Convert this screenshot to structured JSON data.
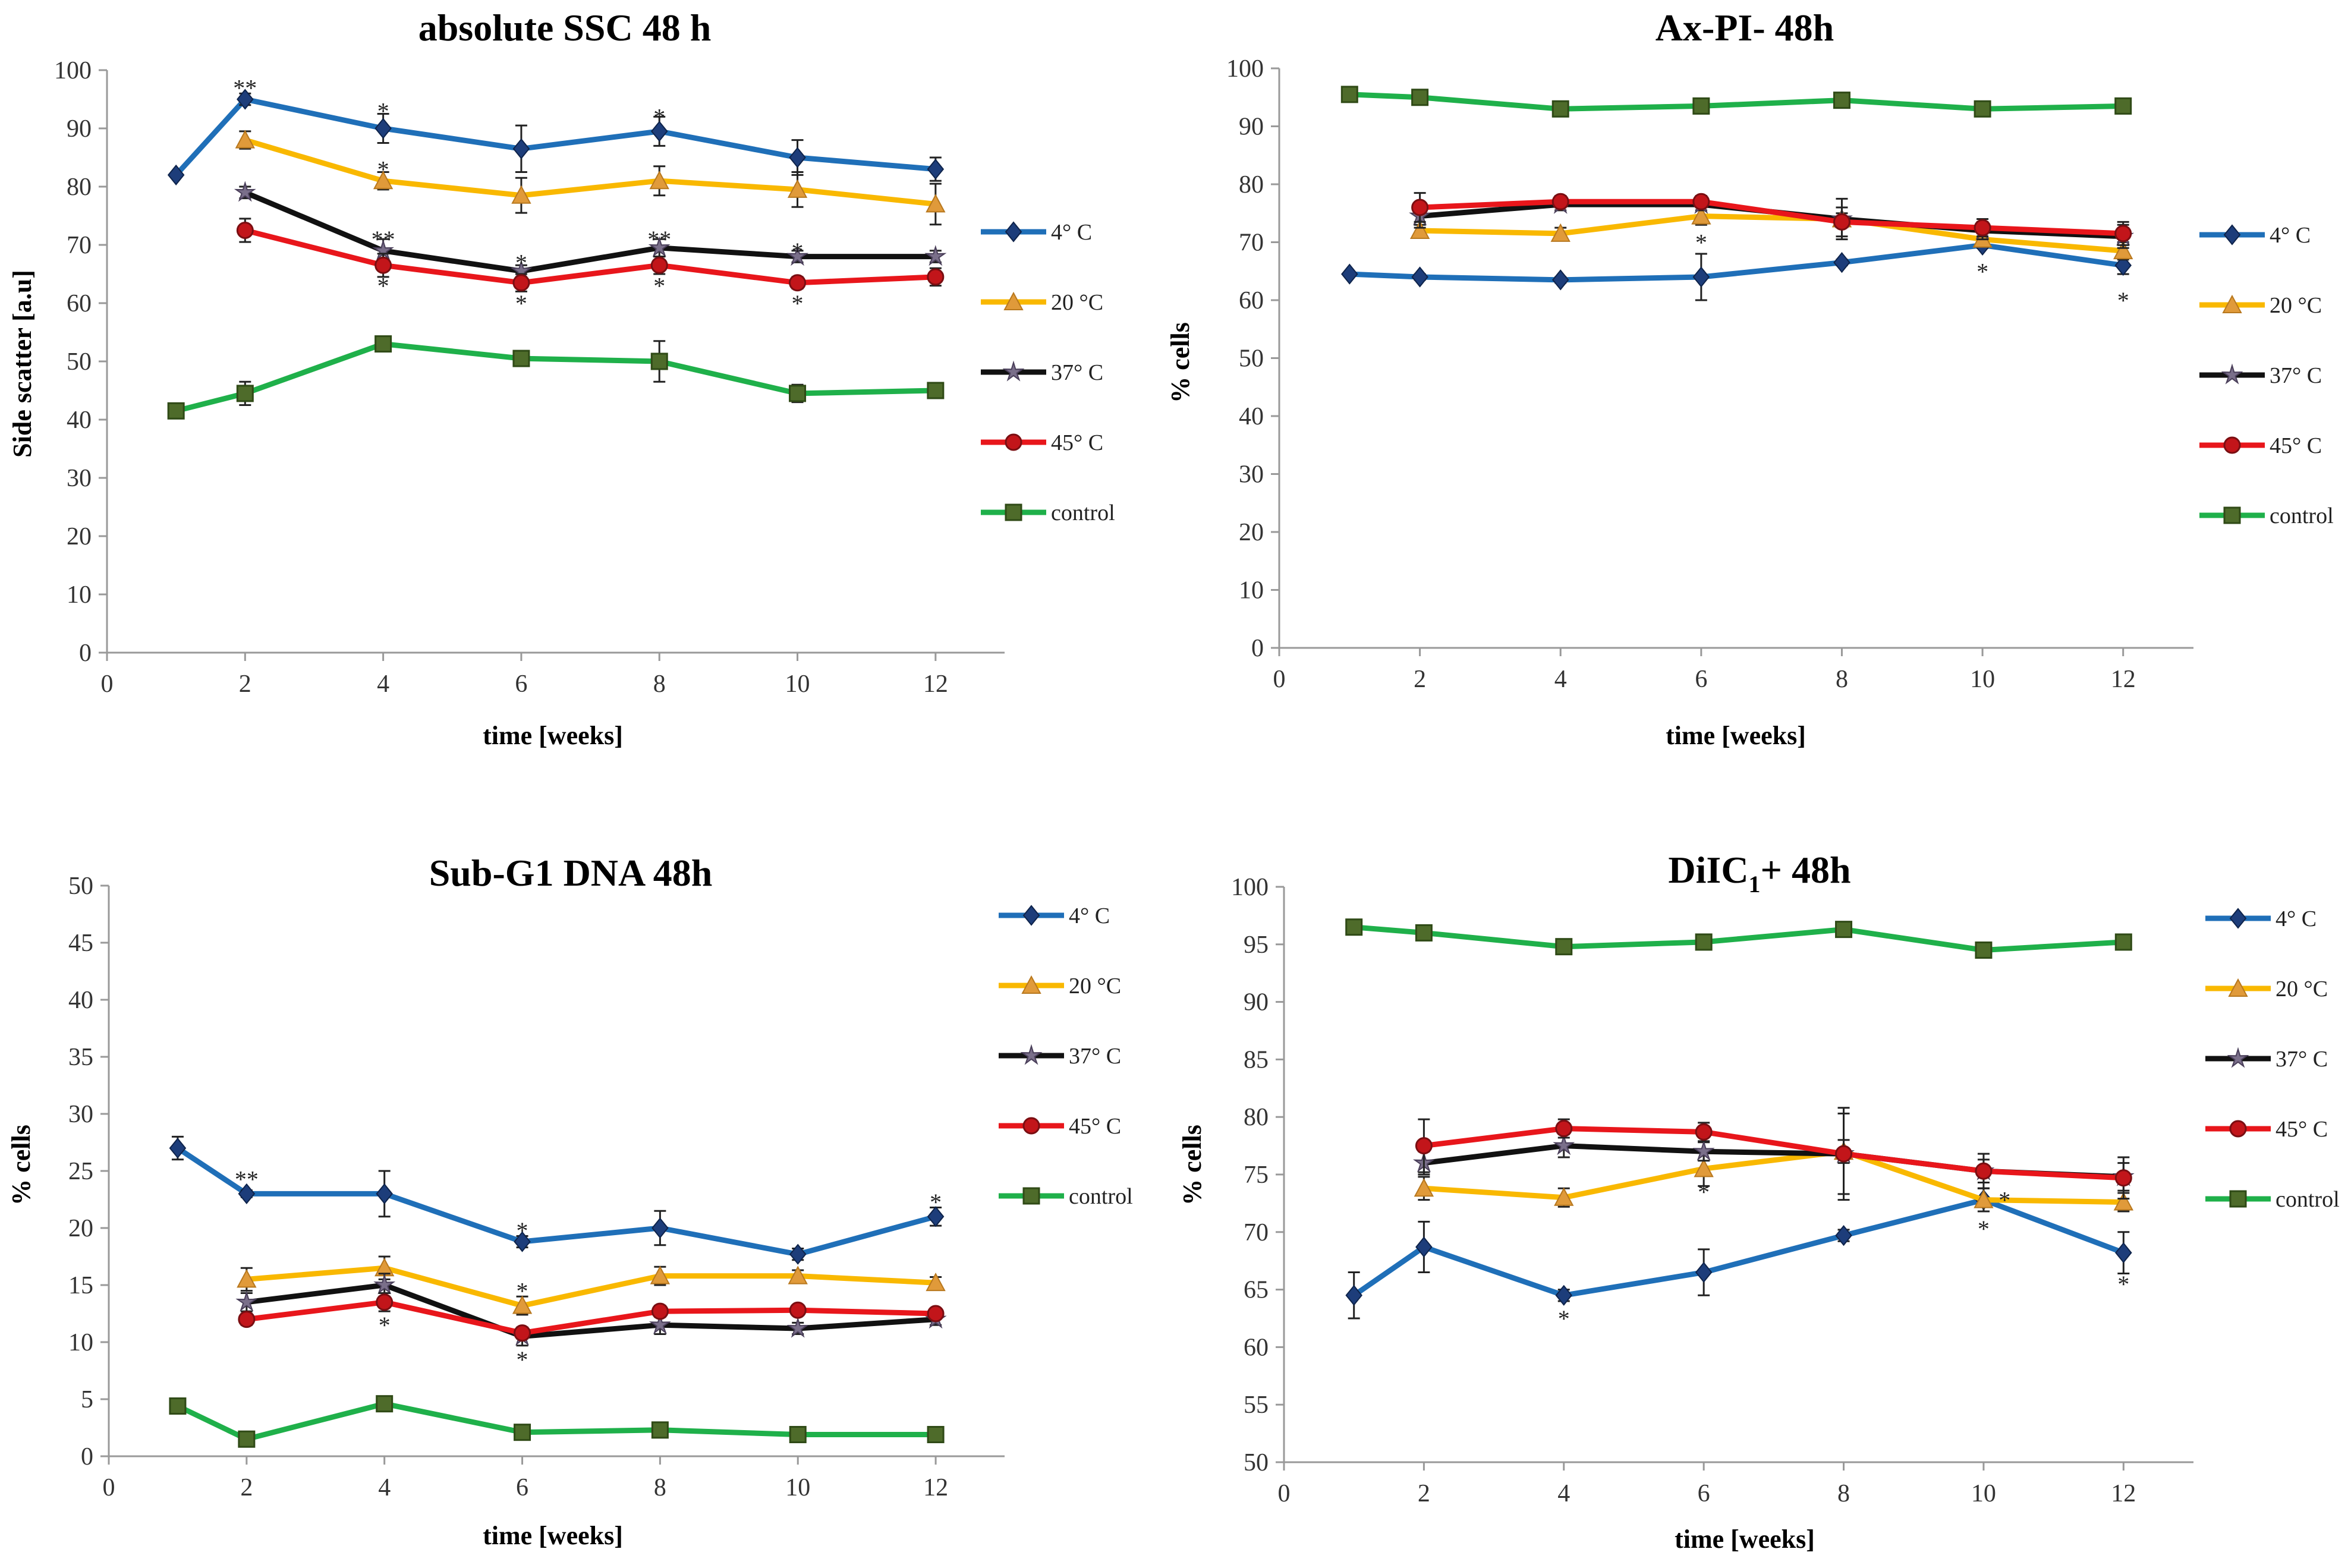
{
  "chart_data": [
    {
      "type": "line",
      "title": "absolute SSC 48 h",
      "xlabel": "time  [weeks]",
      "ylabel": "Side scatter [a.u]",
      "xlim": [
        0,
        13
      ],
      "ylim": [
        0,
        100
      ],
      "xticks": [
        0,
        2,
        4,
        6,
        8,
        10,
        12
      ],
      "yticks": [
        0,
        10,
        20,
        30,
        40,
        50,
        60,
        70,
        80,
        90,
        100
      ],
      "x": [
        1,
        2,
        4,
        6,
        8,
        10,
        12
      ],
      "series": [
        {
          "name": "4° C",
          "color": "#1f6fb8",
          "marker": "diamond",
          "values": [
            82,
            95,
            90,
            86.5,
            89.5,
            85,
            83
          ],
          "errors": [
            0,
            1,
            2.5,
            4,
            2.5,
            3,
            2
          ]
        },
        {
          "name": "20 °C",
          "color": "#f9b800",
          "marker": "triangle",
          "values": [
            null,
            88,
            81,
            78.5,
            81,
            79.5,
            77
          ],
          "errors": [
            0,
            1.5,
            1.5,
            3,
            2.5,
            3,
            3.5
          ]
        },
        {
          "name": "37° C",
          "color": "#111111",
          "marker": "star",
          "values": [
            null,
            79,
            69,
            65.5,
            69.5,
            68,
            68
          ],
          "errors": [
            0,
            1,
            2,
            1,
            1.5,
            1,
            1
          ]
        },
        {
          "name": "45° C",
          "color": "#e8161b",
          "marker": "circle",
          "values": [
            null,
            72.5,
            66.5,
            63.5,
            66.5,
            63.5,
            64.5
          ],
          "errors": [
            0,
            2,
            2,
            1.5,
            1.5,
            1,
            1.5
          ]
        },
        {
          "name": "control",
          "color": "#1fb04a",
          "marker": "square",
          "values": [
            41.5,
            44.5,
            53,
            50.5,
            50,
            44.5,
            45
          ],
          "errors": [
            0,
            2,
            1,
            1,
            3.5,
            1.5,
            1
          ]
        }
      ],
      "annotations": [
        {
          "x": 2,
          "y": 97,
          "text": "**"
        },
        {
          "x": 4,
          "y": 93,
          "text": "*"
        },
        {
          "x": 4,
          "y": 83,
          "text": "*"
        },
        {
          "x": 4,
          "y": 71,
          "text": "**"
        },
        {
          "x": 4,
          "y": 63,
          "text": "*"
        },
        {
          "x": 6,
          "y": 67,
          "text": "*"
        },
        {
          "x": 6,
          "y": 60,
          "text": "*"
        },
        {
          "x": 8,
          "y": 92,
          "text": "*"
        },
        {
          "x": 8,
          "y": 71,
          "text": "**"
        },
        {
          "x": 8,
          "y": 63,
          "text": "*"
        },
        {
          "x": 10,
          "y": 69,
          "text": "*"
        },
        {
          "x": 10,
          "y": 60,
          "text": "*"
        }
      ]
    },
    {
      "type": "line",
      "title": "Ax-PI-  48h",
      "xlabel": "time  [weeks]",
      "ylabel": "% cells",
      "xlim": [
        0,
        13
      ],
      "ylim": [
        0,
        100
      ],
      "xticks": [
        0,
        2,
        4,
        6,
        8,
        10,
        12
      ],
      "yticks": [
        0,
        10,
        20,
        30,
        40,
        50,
        60,
        70,
        80,
        90,
        100
      ],
      "x": [
        1,
        2,
        4,
        6,
        8,
        10,
        12
      ],
      "series": [
        {
          "name": "4° C",
          "color": "#1f6fb8",
          "marker": "diamond",
          "values": [
            64.5,
            64,
            63.5,
            64,
            66.5,
            69.5,
            66
          ],
          "errors": [
            0,
            0.5,
            0.5,
            4,
            0.5,
            0.5,
            1.5
          ]
        },
        {
          "name": "20 °C",
          "color": "#f9b800",
          "marker": "triangle",
          "values": [
            null,
            72,
            71.5,
            74.5,
            74,
            70.5,
            68.5
          ],
          "errors": [
            0,
            1,
            1,
            1.5,
            1,
            1,
            1.5
          ]
        },
        {
          "name": "37° C",
          "color": "#111111",
          "marker": "star",
          "values": [
            null,
            74.5,
            76.5,
            76.5,
            74,
            72,
            71
          ],
          "errors": [
            0,
            2,
            1,
            1,
            3.5,
            1.5,
            2
          ]
        },
        {
          "name": "45° C",
          "color": "#e8161b",
          "marker": "circle",
          "values": [
            null,
            76,
            77,
            77,
            73.5,
            72.5,
            71.5
          ],
          "errors": [
            0,
            2.5,
            1,
            1,
            2.5,
            1.5,
            2
          ]
        },
        {
          "name": "control",
          "color": "#1fb04a",
          "marker": "square",
          "values": [
            95.5,
            95,
            93,
            93.5,
            94.5,
            93,
            93.5
          ],
          "errors": [
            0,
            0.5,
            0.5,
            0.5,
            0.5,
            0.5,
            0.5
          ]
        }
      ],
      "annotations": [
        {
          "x": 6,
          "y": 70,
          "text": "*"
        },
        {
          "x": 10,
          "y": 65,
          "text": "*"
        },
        {
          "x": 12,
          "y": 60,
          "text": "*"
        }
      ]
    },
    {
      "type": "line",
      "title": "Sub-G1 DNA 48h",
      "xlabel": "time  [weeks]",
      "ylabel": "% cells",
      "xlim": [
        0,
        13
      ],
      "ylim": [
        0,
        50
      ],
      "xticks": [
        0,
        2,
        4,
        6,
        8,
        10,
        12
      ],
      "yticks": [
        0,
        5,
        10,
        15,
        20,
        25,
        30,
        35,
        40,
        45,
        50
      ],
      "x": [
        1,
        2,
        4,
        6,
        8,
        10,
        12
      ],
      "series": [
        {
          "name": "4° C",
          "color": "#1f6fb8",
          "marker": "diamond",
          "values": [
            27,
            23,
            23,
            18.8,
            20,
            17.7,
            21
          ],
          "errors": [
            1,
            0.3,
            2,
            0.5,
            1.5,
            0.5,
            0.8
          ]
        },
        {
          "name": "20 °C",
          "color": "#f9b800",
          "marker": "triangle",
          "values": [
            null,
            15.5,
            16.5,
            13.2,
            15.8,
            15.8,
            15.2
          ],
          "errors": [
            0,
            1,
            1,
            0.8,
            0.8,
            0.5,
            0.5
          ]
        },
        {
          "name": "37° C",
          "color": "#111111",
          "marker": "star",
          "values": [
            null,
            13.5,
            15,
            10.5,
            11.5,
            11.2,
            12
          ],
          "errors": [
            0,
            0.8,
            1,
            0.8,
            0.8,
            0.5,
            0.5
          ]
        },
        {
          "name": "45° C",
          "color": "#e8161b",
          "marker": "circle",
          "values": [
            null,
            12,
            13.5,
            10.8,
            12.7,
            12.8,
            12.5
          ],
          "errors": [
            0,
            0.5,
            0.8,
            0.5,
            0.5,
            0.3,
            0.3
          ]
        },
        {
          "name": "control",
          "color": "#1fb04a",
          "marker": "square",
          "values": [
            4.4,
            1.5,
            4.6,
            2.1,
            2.3,
            1.9,
            1.9
          ],
          "errors": [
            0,
            0.3,
            0.3,
            0.3,
            0.3,
            0.3,
            0.3
          ]
        }
      ],
      "annotations": [
        {
          "x": 2,
          "y": 24.3,
          "text": "**"
        },
        {
          "x": 4,
          "y": 11.5,
          "text": "*"
        },
        {
          "x": 6,
          "y": 19.8,
          "text": "*"
        },
        {
          "x": 6,
          "y": 14.5,
          "text": "*"
        },
        {
          "x": 6,
          "y": 8.5,
          "text": "*"
        },
        {
          "x": 12,
          "y": 22.3,
          "text": "*"
        }
      ]
    },
    {
      "type": "line",
      "title": "DiIC",
      "title_subscript": "1",
      "title_suffix": "+ 48h",
      "xlabel": "time  [weeks]",
      "ylabel": "% cells",
      "xlim": [
        0,
        13
      ],
      "ylim": [
        50,
        100
      ],
      "xticks": [
        0,
        2,
        4,
        6,
        8,
        10,
        12
      ],
      "yticks": [
        50,
        55,
        60,
        65,
        70,
        75,
        80,
        85,
        90,
        95,
        100
      ],
      "x": [
        1,
        2,
        4,
        6,
        8,
        10,
        12
      ],
      "series": [
        {
          "name": "4° C",
          "color": "#1f6fb8",
          "marker": "diamond",
          "values": [
            64.5,
            68.7,
            64.5,
            66.5,
            69.7,
            72.8,
            68.2
          ],
          "errors": [
            2,
            2.2,
            0.5,
            2,
            0.5,
            1,
            1.8
          ]
        },
        {
          "name": "20 °C",
          "color": "#f9b800",
          "marker": "triangle",
          "values": [
            null,
            73.8,
            73,
            75.5,
            77,
            72.8,
            72.6
          ],
          "errors": [
            0,
            1,
            0.8,
            1.5,
            1,
            1,
            0.8
          ]
        },
        {
          "name": "37° C",
          "color": "#111111",
          "marker": "star",
          "values": [
            null,
            76,
            77.5,
            77,
            76.8,
            75.3,
            74.8
          ],
          "errors": [
            0,
            1,
            1,
            0.8,
            3.5,
            1,
            1.2
          ]
        },
        {
          "name": "45° C",
          "color": "#e8161b",
          "marker": "circle",
          "values": [
            null,
            77.5,
            79,
            78.7,
            76.8,
            75.3,
            74.7
          ],
          "errors": [
            0,
            2.3,
            0.8,
            0.8,
            4,
            1.5,
            1.8
          ]
        },
        {
          "name": "control",
          "color": "#1fb04a",
          "marker": "square",
          "values": [
            96.5,
            96,
            94.8,
            95.2,
            96.3,
            94.5,
            95.2
          ],
          "errors": [
            0,
            0.3,
            0.5,
            0.5,
            0.3,
            0.5,
            0.3
          ]
        }
      ],
      "annotations": [
        {
          "x": 4,
          "y": 62.5,
          "text": "*"
        },
        {
          "x": 6,
          "y": 73.5,
          "text": "*"
        },
        {
          "x": 10,
          "y": 70.3,
          "text": "*"
        },
        {
          "x": 10.3,
          "y": 72.8,
          "text": "*"
        },
        {
          "x": 12,
          "y": 65.5,
          "text": "*"
        }
      ]
    }
  ]
}
